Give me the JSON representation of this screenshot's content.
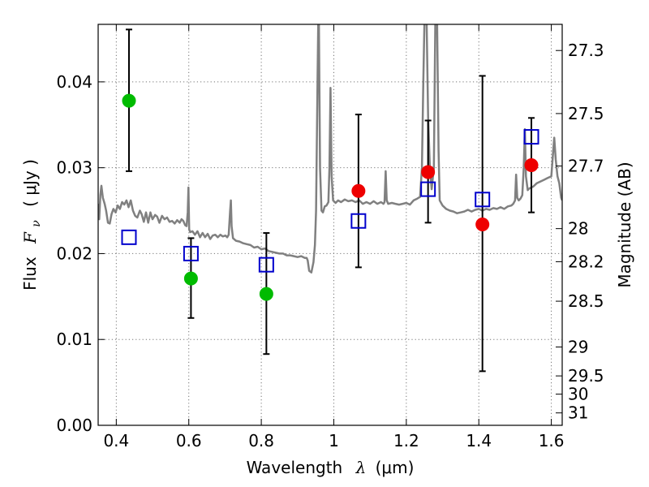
{
  "chart_data": {
    "type": "scatter",
    "title": "",
    "xlabel_text": "Wavelength",
    "xlabel_symbol": "λ",
    "xlabel_unit": "(μm)",
    "ylabel_text": "Flux",
    "ylabel_symbol_main": "F",
    "ylabel_symbol_sub": "ν",
    "ylabel_unit": "( μJy )",
    "y2label": "Magnitude (AB)",
    "xlim": [
      0.35,
      1.63
    ],
    "ylim": [
      0.0,
      0.0467
    ],
    "grid": true,
    "x_ticks": [
      {
        "value": 0.4,
        "label": "0.4"
      },
      {
        "value": 0.6,
        "label": "0.6"
      },
      {
        "value": 0.8,
        "label": "0.8"
      },
      {
        "value": 1.0,
        "label": "1"
      },
      {
        "value": 1.2,
        "label": "1.2"
      },
      {
        "value": 1.4,
        "label": "1.4"
      },
      {
        "value": 1.6,
        "label": "1.6"
      }
    ],
    "y_ticks": [
      {
        "value": 0.0,
        "label": "0.00"
      },
      {
        "value": 0.01,
        "label": "0.01"
      },
      {
        "value": 0.02,
        "label": "0.02"
      },
      {
        "value": 0.03,
        "label": "0.03"
      },
      {
        "value": 0.04,
        "label": "0.04"
      }
    ],
    "y2_ticks": [
      {
        "value": 27.3,
        "label": "27.3"
      },
      {
        "value": 27.5,
        "label": "27.5"
      },
      {
        "value": 27.7,
        "label": "27.7"
      },
      {
        "value": 28.0,
        "label": "28"
      },
      {
        "value": 28.2,
        "label": "28.2"
      },
      {
        "value": 28.5,
        "label": "28.5"
      },
      {
        "value": 29.0,
        "label": "29"
      },
      {
        "value": 29.5,
        "label": "29.5"
      },
      {
        "value": 30.0,
        "label": "30"
      },
      {
        "value": 31.0,
        "label": "31"
      }
    ],
    "series": [
      {
        "kind": "observed",
        "marker": "circle",
        "color": "#00bb00",
        "points": [
          {
            "x": 0.435,
            "y": 0.0378,
            "err_low": 0.0296,
            "err_high": 0.0461
          },
          {
            "x": 0.606,
            "y": 0.0171,
            "err_low": 0.0125,
            "err_high": 0.0218
          },
          {
            "x": 0.814,
            "y": 0.0153,
            "err_low": 0.0083,
            "err_high": 0.0224
          }
        ]
      },
      {
        "kind": "observed",
        "marker": "circle",
        "color": "#ee0000",
        "points": [
          {
            "x": 1.068,
            "y": 0.0273,
            "err_low": 0.0184,
            "err_high": 0.0362
          },
          {
            "x": 1.26,
            "y": 0.0295,
            "err_low": 0.0236,
            "err_high": 0.0355
          },
          {
            "x": 1.41,
            "y": 0.0234,
            "err_low": 0.0063,
            "err_high": 0.0407
          },
          {
            "x": 1.545,
            "y": 0.0303,
            "err_low": 0.0248,
            "err_high": 0.0358
          }
        ]
      },
      {
        "kind": "model_photometry",
        "marker": "square-open",
        "color": "#0000cc",
        "points": [
          {
            "x": 0.435,
            "y": 0.0219
          },
          {
            "x": 0.606,
            "y": 0.02
          },
          {
            "x": 0.814,
            "y": 0.0187
          },
          {
            "x": 1.068,
            "y": 0.0238
          },
          {
            "x": 1.26,
            "y": 0.0275
          },
          {
            "x": 1.41,
            "y": 0.0263
          },
          {
            "x": 1.545,
            "y": 0.0336
          }
        ]
      },
      {
        "kind": "model_spectrum",
        "marker": "line",
        "color": "#808080",
        "points": [
          [
            0.35,
            0.0258
          ],
          [
            0.353,
            0.024
          ],
          [
            0.356,
            0.0268
          ],
          [
            0.359,
            0.0279
          ],
          [
            0.363,
            0.0265
          ],
          [
            0.368,
            0.0258
          ],
          [
            0.372,
            0.025
          ],
          [
            0.377,
            0.0236
          ],
          [
            0.382,
            0.0235
          ],
          [
            0.387,
            0.0246
          ],
          [
            0.392,
            0.0252
          ],
          [
            0.398,
            0.0248
          ],
          [
            0.404,
            0.0256
          ],
          [
            0.41,
            0.0252
          ],
          [
            0.416,
            0.026
          ],
          [
            0.422,
            0.0257
          ],
          [
            0.428,
            0.0262
          ],
          [
            0.434,
            0.0254
          ],
          [
            0.44,
            0.0262
          ],
          [
            0.446,
            0.025
          ],
          [
            0.452,
            0.0244
          ],
          [
            0.458,
            0.0242
          ],
          [
            0.465,
            0.025
          ],
          [
            0.47,
            0.0246
          ],
          [
            0.476,
            0.0237
          ],
          [
            0.482,
            0.0248
          ],
          [
            0.488,
            0.0236
          ],
          [
            0.494,
            0.0248
          ],
          [
            0.5,
            0.024
          ],
          [
            0.507,
            0.0245
          ],
          [
            0.513,
            0.0243
          ],
          [
            0.519,
            0.0236
          ],
          [
            0.526,
            0.0244
          ],
          [
            0.533,
            0.024
          ],
          [
            0.54,
            0.0242
          ],
          [
            0.547,
            0.0237
          ],
          [
            0.554,
            0.0238
          ],
          [
            0.561,
            0.0235
          ],
          [
            0.568,
            0.0239
          ],
          [
            0.575,
            0.0236
          ],
          [
            0.58,
            0.024
          ],
          [
            0.585,
            0.0238
          ],
          [
            0.59,
            0.0233
          ],
          [
            0.594,
            0.0232
          ],
          [
            0.597,
            0.0248
          ],
          [
            0.599,
            0.0277
          ],
          [
            0.601,
            0.0228
          ],
          [
            0.604,
            0.0225
          ],
          [
            0.61,
            0.0226
          ],
          [
            0.617,
            0.0222
          ],
          [
            0.624,
            0.0226
          ],
          [
            0.631,
            0.0219
          ],
          [
            0.638,
            0.0224
          ],
          [
            0.645,
            0.0219
          ],
          [
            0.652,
            0.0223
          ],
          [
            0.659,
            0.0217
          ],
          [
            0.666,
            0.0221
          ],
          [
            0.673,
            0.0222
          ],
          [
            0.68,
            0.0219
          ],
          [
            0.687,
            0.0222
          ],
          [
            0.694,
            0.022
          ],
          [
            0.701,
            0.0221
          ],
          [
            0.706,
            0.0219
          ],
          [
            0.71,
            0.0222
          ],
          [
            0.714,
            0.025
          ],
          [
            0.716,
            0.0262
          ],
          [
            0.718,
            0.0232
          ],
          [
            0.722,
            0.0218
          ],
          [
            0.73,
            0.0215
          ],
          [
            0.74,
            0.0214
          ],
          [
            0.75,
            0.0212
          ],
          [
            0.76,
            0.0211
          ],
          [
            0.77,
            0.021
          ],
          [
            0.78,
            0.0207
          ],
          [
            0.79,
            0.0208
          ],
          [
            0.8,
            0.0205
          ],
          [
            0.81,
            0.0206
          ],
          [
            0.82,
            0.0203
          ],
          [
            0.83,
            0.0202
          ],
          [
            0.84,
            0.0201
          ],
          [
            0.85,
            0.02
          ],
          [
            0.86,
            0.02
          ],
          [
            0.87,
            0.0198
          ],
          [
            0.88,
            0.0198
          ],
          [
            0.89,
            0.0197
          ],
          [
            0.9,
            0.0196
          ],
          [
            0.91,
            0.0197
          ],
          [
            0.92,
            0.0195
          ],
          [
            0.925,
            0.0195
          ],
          [
            0.928,
            0.0192
          ],
          [
            0.932,
            0.018
          ],
          [
            0.938,
            0.0178
          ],
          [
            0.944,
            0.019
          ],
          [
            0.948,
            0.021
          ],
          [
            0.951,
            0.025
          ],
          [
            0.955,
            0.04
          ],
          [
            0.957,
            0.047
          ],
          [
            0.959,
            0.047
          ],
          [
            0.962,
            0.03
          ],
          [
            0.966,
            0.025
          ],
          [
            0.97,
            0.0248
          ],
          [
            0.975,
            0.0255
          ],
          [
            0.98,
            0.0256
          ],
          [
            0.985,
            0.026
          ],
          [
            0.988,
            0.03
          ],
          [
            0.991,
            0.0393
          ],
          [
            0.994,
            0.029
          ],
          [
            0.998,
            0.0262
          ],
          [
            1.005,
            0.0259
          ],
          [
            1.012,
            0.0262
          ],
          [
            1.02,
            0.026
          ],
          [
            1.03,
            0.0263
          ],
          [
            1.04,
            0.0261
          ],
          [
            1.05,
            0.0262
          ],
          [
            1.06,
            0.026
          ],
          [
            1.07,
            0.0262
          ],
          [
            1.08,
            0.0258
          ],
          [
            1.09,
            0.026
          ],
          [
            1.1,
            0.0258
          ],
          [
            1.11,
            0.0261
          ],
          [
            1.12,
            0.0258
          ],
          [
            1.13,
            0.026
          ],
          [
            1.137,
            0.0258
          ],
          [
            1.14,
            0.026
          ],
          [
            1.143,
            0.0296
          ],
          [
            1.146,
            0.0262
          ],
          [
            1.15,
            0.0258
          ],
          [
            1.16,
            0.0259
          ],
          [
            1.17,
            0.0258
          ],
          [
            1.18,
            0.0257
          ],
          [
            1.19,
            0.0258
          ],
          [
            1.2,
            0.0259
          ],
          [
            1.21,
            0.0257
          ],
          [
            1.22,
            0.0262
          ],
          [
            1.23,
            0.0264
          ],
          [
            1.238,
            0.0266
          ],
          [
            1.243,
            0.03
          ],
          [
            1.247,
            0.04
          ],
          [
            1.25,
            0.047
          ],
          [
            1.256,
            0.047
          ],
          [
            1.26,
            0.036
          ],
          [
            1.265,
            0.03
          ],
          [
            1.27,
            0.0275
          ],
          [
            1.276,
            0.03
          ],
          [
            1.28,
            0.047
          ],
          [
            1.285,
            0.047
          ],
          [
            1.289,
            0.032
          ],
          [
            1.292,
            0.0262
          ],
          [
            1.3,
            0.0256
          ],
          [
            1.31,
            0.0252
          ],
          [
            1.32,
            0.025
          ],
          [
            1.33,
            0.0249
          ],
          [
            1.34,
            0.0247
          ],
          [
            1.35,
            0.0248
          ],
          [
            1.36,
            0.0249
          ],
          [
            1.37,
            0.0251
          ],
          [
            1.38,
            0.0249
          ],
          [
            1.39,
            0.0251
          ],
          [
            1.4,
            0.0252
          ],
          [
            1.41,
            0.025
          ],
          [
            1.42,
            0.0252
          ],
          [
            1.43,
            0.0251
          ],
          [
            1.44,
            0.0253
          ],
          [
            1.45,
            0.0252
          ],
          [
            1.46,
            0.0254
          ],
          [
            1.47,
            0.0252
          ],
          [
            1.48,
            0.0255
          ],
          [
            1.49,
            0.0256
          ],
          [
            1.495,
            0.0258
          ],
          [
            1.5,
            0.0262
          ],
          [
            1.503,
            0.0292
          ],
          [
            1.506,
            0.0265
          ],
          [
            1.51,
            0.0262
          ],
          [
            1.515,
            0.0264
          ],
          [
            1.52,
            0.0268
          ],
          [
            1.524,
            0.03
          ],
          [
            1.527,
            0.0345
          ],
          [
            1.53,
            0.029
          ],
          [
            1.535,
            0.0274
          ],
          [
            1.54,
            0.0276
          ],
          [
            1.55,
            0.0278
          ],
          [
            1.56,
            0.0282
          ],
          [
            1.57,
            0.0284
          ],
          [
            1.58,
            0.0286
          ],
          [
            1.59,
            0.0288
          ],
          [
            1.6,
            0.029
          ],
          [
            1.605,
            0.0318
          ],
          [
            1.608,
            0.0335
          ],
          [
            1.612,
            0.031
          ],
          [
            1.617,
            0.029
          ],
          [
            1.622,
            0.0282
          ],
          [
            1.627,
            0.0265
          ],
          [
            1.63,
            0.0262
          ]
        ]
      }
    ]
  }
}
